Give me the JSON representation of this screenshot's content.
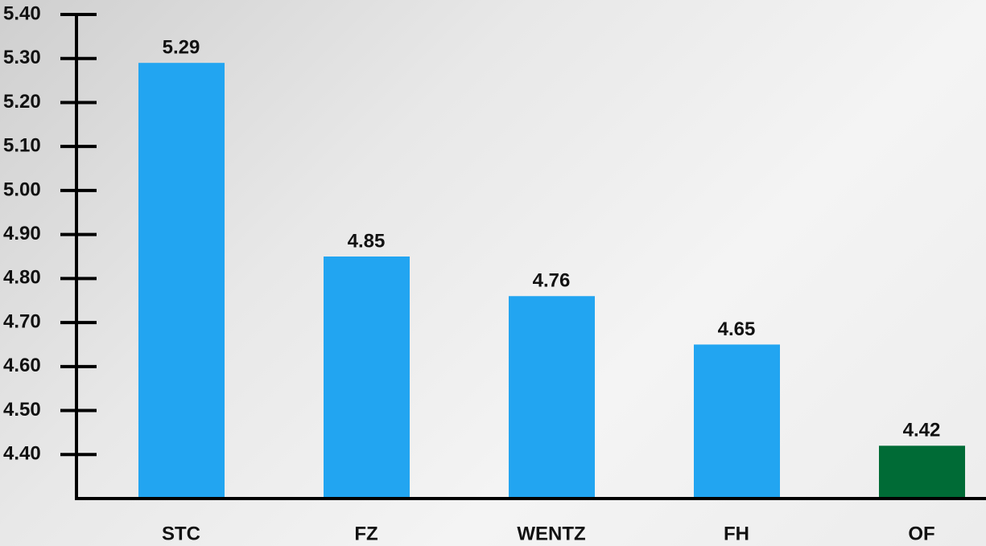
{
  "chart_data": {
    "type": "bar",
    "categories": [
      "STC",
      "FZ",
      "WENTZ",
      "FH",
      "OF"
    ],
    "values": [
      5.29,
      4.85,
      4.76,
      4.65,
      4.42
    ],
    "colors": [
      "#22a5f1",
      "#22a5f1",
      "#22a5f1",
      "#22a5f1",
      "#006b36"
    ],
    "ylim": [
      4.3,
      5.4
    ],
    "yticks": [
      {
        "value": 4.4,
        "label": "4.40"
      },
      {
        "value": 4.5,
        "label": "4.50"
      },
      {
        "value": 4.6,
        "label": "4.60"
      },
      {
        "value": 4.7,
        "label": "4.70"
      },
      {
        "value": 4.8,
        "label": "4.80"
      },
      {
        "value": 4.9,
        "label": "4.90"
      },
      {
        "value": 5.0,
        "label": "5.00"
      },
      {
        "value": 5.1,
        "label": "5.10"
      },
      {
        "value": 5.2,
        "label": "5.20"
      },
      {
        "value": 5.3,
        "label": "5.30"
      },
      {
        "value": 5.4,
        "label": "5.40"
      }
    ]
  }
}
